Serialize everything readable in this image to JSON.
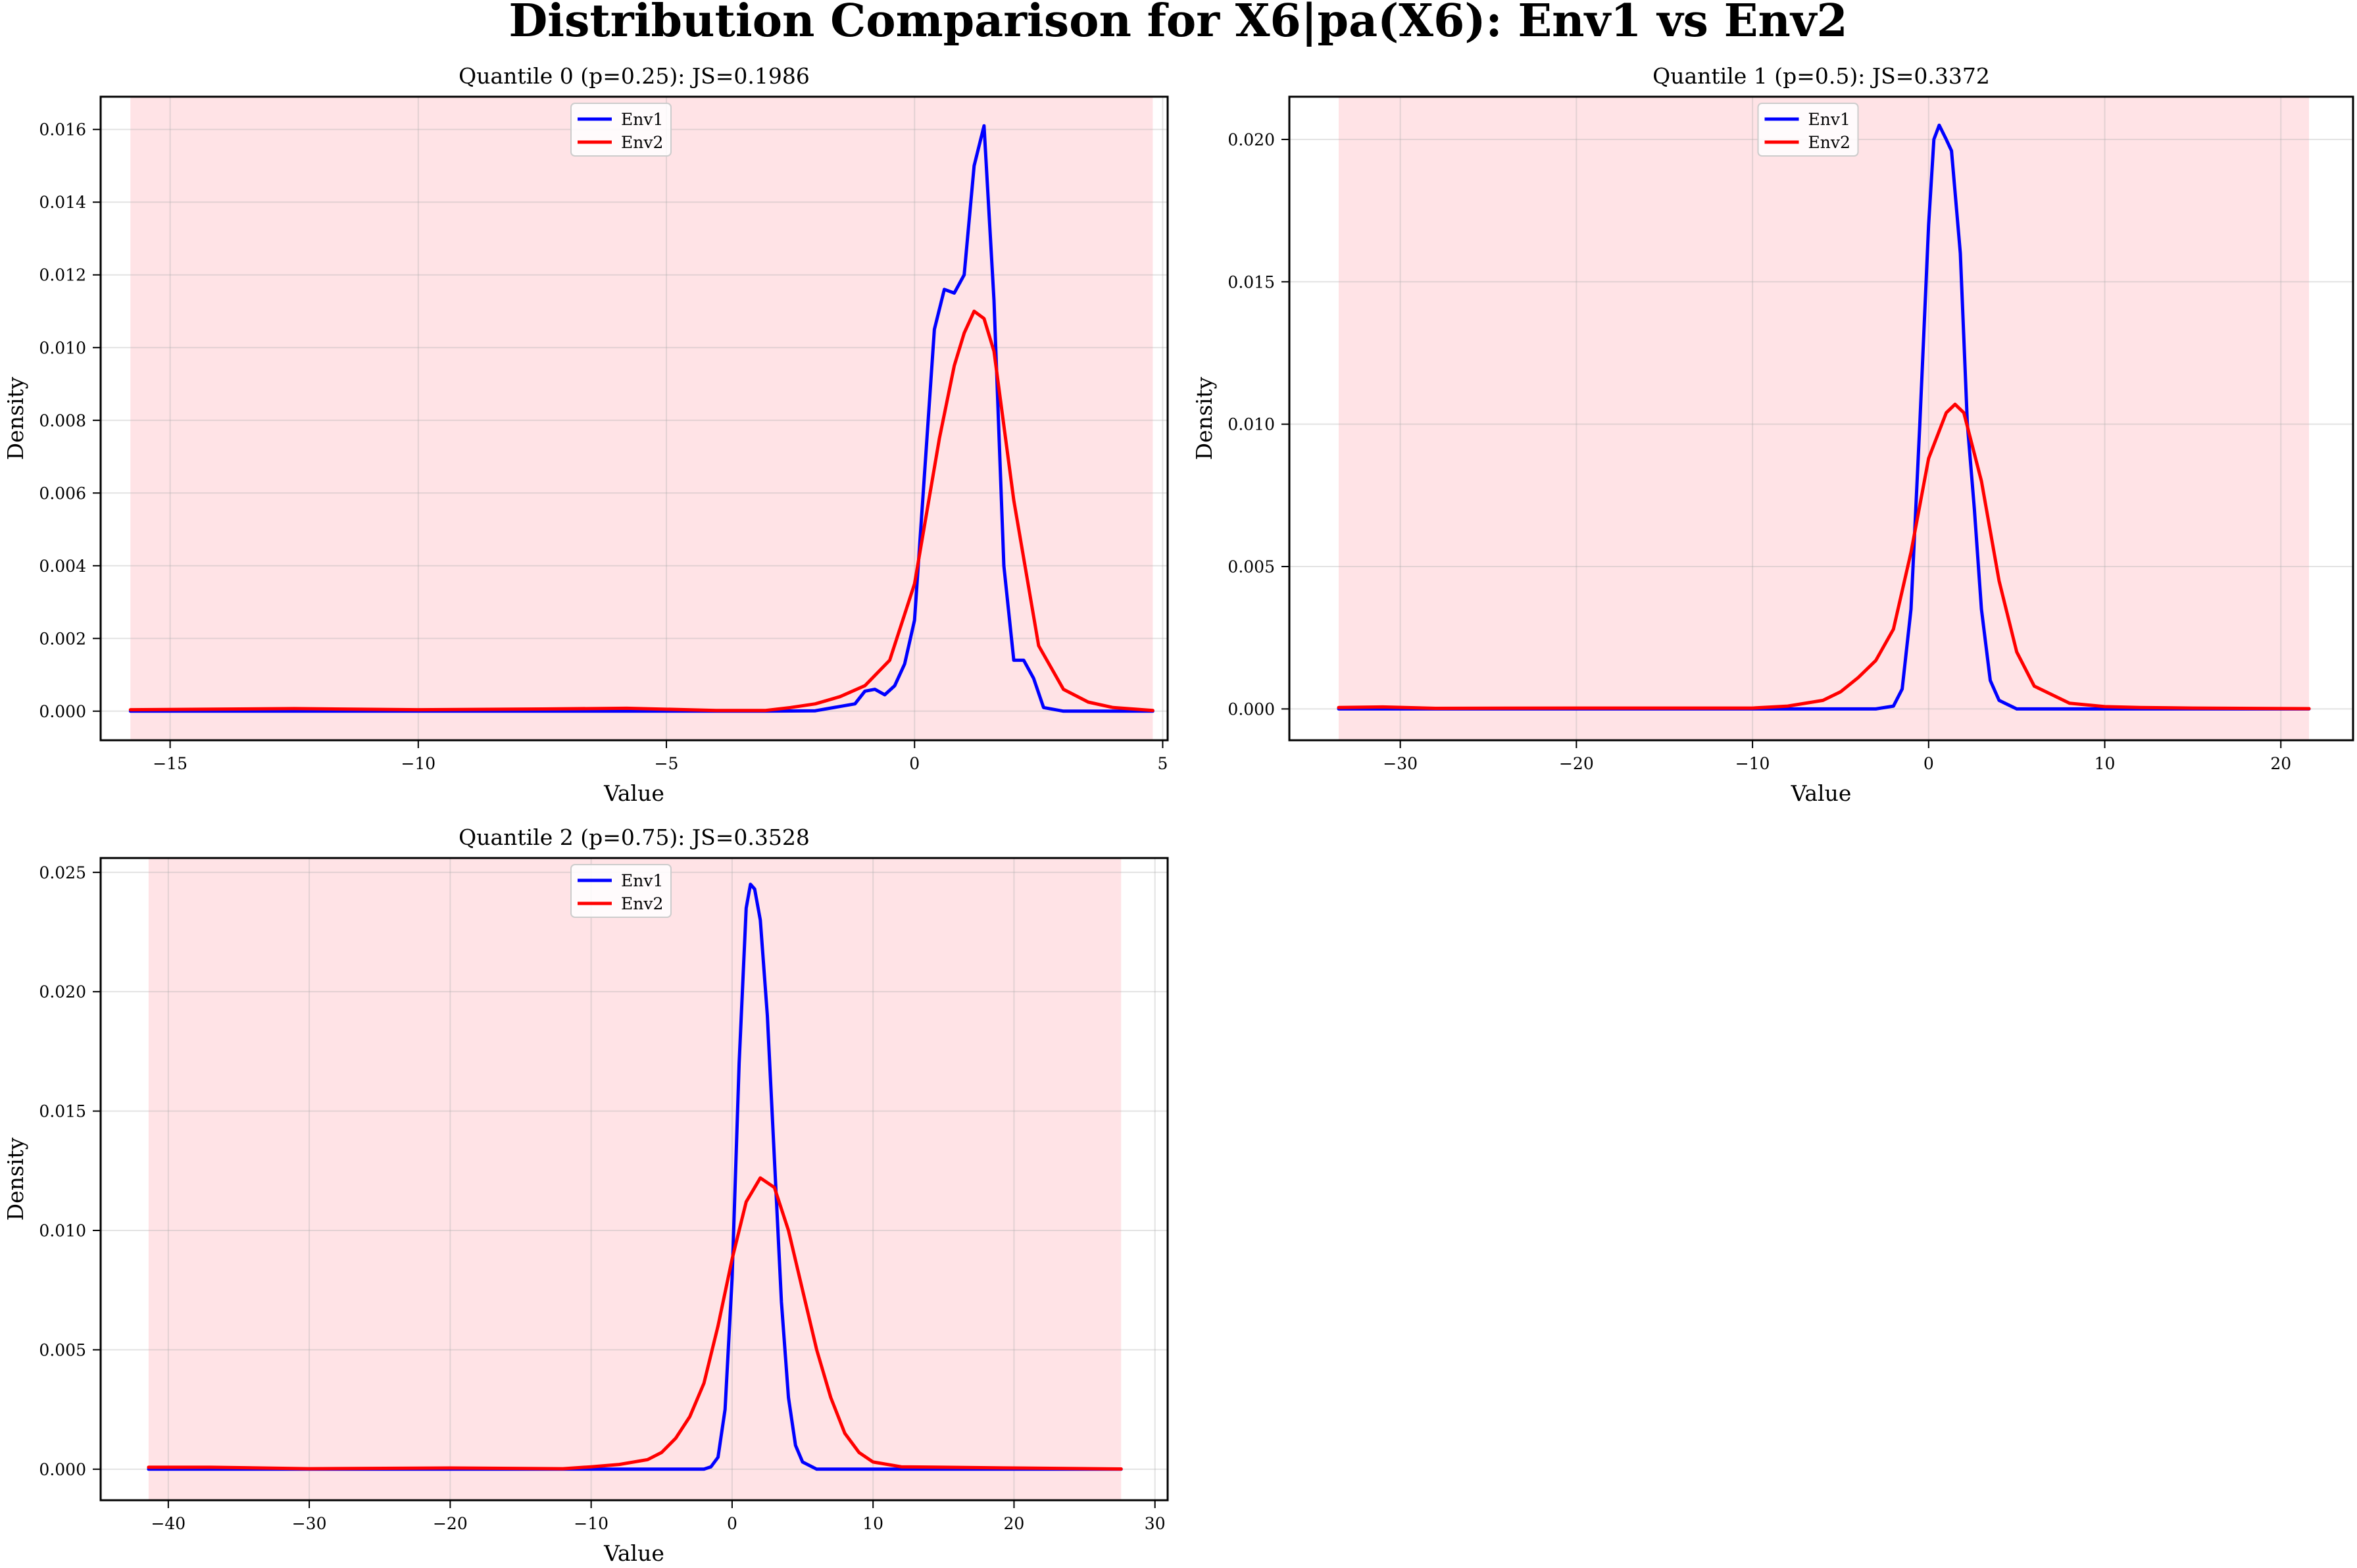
{
  "figure": {
    "suptitle": "Distribution Comparison for X6|pa(X6): Env1 vs Env2"
  },
  "chart_data": [
    {
      "type": "line",
      "title": "Quantile 0 (p=0.25): JS=0.1986",
      "xlabel": "Value",
      "ylabel": "Density",
      "xlim": [
        -16.4,
        5.1
      ],
      "ylim": [
        -0.0008,
        0.0169
      ],
      "xticks": [
        -15,
        -10,
        -5,
        0,
        5
      ],
      "xtick_labels": [
        "−15",
        "−10",
        "−5",
        "0",
        "5"
      ],
      "yticks": [
        0.0,
        0.002,
        0.004,
        0.006,
        0.008,
        0.01,
        0.012,
        0.014,
        0.016
      ],
      "ytick_labels": [
        "0.000",
        "0.002",
        "0.004",
        "0.006",
        "0.008",
        "0.010",
        "0.012",
        "0.014",
        "0.016"
      ],
      "shaded_range": [
        -15.8,
        4.8
      ],
      "shade_color": "#ffe3e6",
      "grid": true,
      "legend_position": "top-center",
      "series": [
        {
          "name": "Env1",
          "color": "#0000ff",
          "x": [
            -15.8,
            -10,
            -5,
            -3,
            -2,
            -1.2,
            -1.0,
            -0.8,
            -0.6,
            -0.4,
            -0.2,
            0.0,
            0.2,
            0.4,
            0.6,
            0.8,
            1.0,
            1.2,
            1.4,
            1.6,
            1.8,
            2.0,
            2.2,
            2.4,
            2.6,
            3.0,
            4.8
          ],
          "y": [
            0,
            0,
            0,
            0,
            1e-05,
            0.0002,
            0.00055,
            0.0006,
            0.00045,
            0.0007,
            0.0013,
            0.0025,
            0.0065,
            0.0105,
            0.0116,
            0.0115,
            0.012,
            0.015,
            0.0161,
            0.0113,
            0.004,
            0.0014,
            0.0014,
            0.0009,
            0.0001,
            0,
            0
          ]
        },
        {
          "name": "Env2",
          "color": "#ff0000",
          "x": [
            -15.8,
            -12.5,
            -10,
            -7.5,
            -5.8,
            -4,
            -3,
            -2.5,
            -2,
            -1.5,
            -1.0,
            -0.5,
            0.0,
            0.5,
            0.8,
            1.0,
            1.2,
            1.4,
            1.6,
            2.0,
            2.5,
            3.0,
            3.5,
            4.0,
            4.8
          ],
          "y": [
            4e-05,
            7e-05,
            4e-05,
            6e-05,
            8e-05,
            2e-05,
            2e-05,
            0.0001,
            0.0002,
            0.0004,
            0.0007,
            0.0014,
            0.0035,
            0.0075,
            0.0095,
            0.0104,
            0.011,
            0.0108,
            0.0099,
            0.0058,
            0.0018,
            0.0006,
            0.00025,
            0.0001,
            2e-05
          ]
        }
      ]
    },
    {
      "type": "line",
      "title": "Quantile 1 (p=0.5): JS=0.3372",
      "xlabel": "Value",
      "ylabel": "Density",
      "xlim": [
        -36.3,
        24.1
      ],
      "ylim": [
        -0.0011,
        0.0215
      ],
      "xticks": [
        -30,
        -20,
        -10,
        0,
        10,
        20
      ],
      "xtick_labels": [
        "−30",
        "−20",
        "−10",
        "0",
        "10",
        "20"
      ],
      "yticks": [
        0.0,
        0.005,
        0.01,
        0.015,
        0.02
      ],
      "ytick_labels": [
        "0.000",
        "0.005",
        "0.010",
        "0.015",
        "0.020"
      ],
      "shaded_range": [
        -33.5,
        21.6
      ],
      "shade_color": "#ffe3e6",
      "grid": true,
      "legend_position": "top-center",
      "series": [
        {
          "name": "Env1",
          "color": "#0000ff",
          "x": [
            -33.5,
            -20,
            -10,
            -3,
            -2,
            -1.5,
            -1.0,
            -0.5,
            0.0,
            0.3,
            0.6,
            1.0,
            1.3,
            1.8,
            2.2,
            2.6,
            3.0,
            3.5,
            4.0,
            5.0,
            21.6
          ],
          "y": [
            0,
            0,
            0,
            0,
            0.0001,
            0.0007,
            0.0035,
            0.01,
            0.017,
            0.02,
            0.0205,
            0.02,
            0.0196,
            0.016,
            0.01,
            0.007,
            0.0035,
            0.001,
            0.0003,
            0,
            0
          ]
        },
        {
          "name": "Env2",
          "color": "#ff0000",
          "x": [
            -33.5,
            -31,
            -28,
            -20,
            -15,
            -10,
            -8,
            -6,
            -5,
            -4,
            -3,
            -2,
            -1,
            0,
            1,
            1.5,
            2,
            3,
            4,
            5,
            6,
            8,
            10,
            12,
            15,
            21.6
          ],
          "y": [
            5e-05,
            7e-05,
            2e-05,
            3e-05,
            3e-05,
            3e-05,
            0.0001,
            0.0003,
            0.0006,
            0.0011,
            0.0017,
            0.0028,
            0.0055,
            0.0088,
            0.0104,
            0.0107,
            0.0104,
            0.008,
            0.0045,
            0.002,
            0.0008,
            0.0002,
            8e-05,
            5e-05,
            3e-05,
            1e-05
          ]
        }
      ]
    },
    {
      "type": "line",
      "title": "Quantile 2 (p=0.75): JS=0.3528",
      "xlabel": "Value",
      "ylabel": "Density",
      "xlim": [
        -44.8,
        30.9
      ],
      "ylim": [
        -0.0013,
        0.0256
      ],
      "xticks": [
        -40,
        -30,
        -20,
        -10,
        0,
        10,
        20,
        30
      ],
      "xtick_labels": [
        "−40",
        "−30",
        "−20",
        "−10",
        "0",
        "10",
        "20",
        "30"
      ],
      "yticks": [
        0.0,
        0.005,
        0.01,
        0.015,
        0.02,
        0.025
      ],
      "ytick_labels": [
        "0.000",
        "0.005",
        "0.010",
        "0.015",
        "0.020",
        "0.025"
      ],
      "shaded_range": [
        -41.4,
        27.6
      ],
      "shade_color": "#ffe3e6",
      "grid": true,
      "legend_position": "top-center",
      "series": [
        {
          "name": "Env1",
          "color": "#0000ff",
          "x": [
            -41.4,
            -20,
            -5,
            -2,
            -1.5,
            -1.0,
            -0.5,
            0.0,
            0.5,
            1.0,
            1.3,
            1.6,
            2.0,
            2.5,
            3.0,
            3.5,
            4.0,
            4.5,
            5.0,
            6.0,
            27.6
          ],
          "y": [
            0,
            0,
            0,
            0,
            0.0001,
            0.0005,
            0.0025,
            0.008,
            0.017,
            0.0235,
            0.0245,
            0.0243,
            0.023,
            0.019,
            0.013,
            0.007,
            0.003,
            0.001,
            0.0003,
            0,
            0
          ]
        },
        {
          "name": "Env2",
          "color": "#ff0000",
          "x": [
            -41.4,
            -37,
            -30,
            -20,
            -12,
            -10,
            -8,
            -6,
            -5,
            -4,
            -3,
            -2,
            -1,
            0,
            1,
            2,
            3,
            4,
            5,
            6,
            7,
            8,
            9,
            10,
            12,
            15,
            20,
            27.6
          ],
          "y": [
            8e-05,
            8e-05,
            2e-05,
            5e-05,
            2e-05,
            0.0001,
            0.0002,
            0.0004,
            0.0007,
            0.0013,
            0.0022,
            0.0036,
            0.006,
            0.0088,
            0.0112,
            0.0122,
            0.0118,
            0.01,
            0.0075,
            0.005,
            0.003,
            0.0015,
            0.0007,
            0.0003,
            0.0001,
            8e-05,
            5e-05,
            1e-05
          ]
        }
      ]
    }
  ]
}
